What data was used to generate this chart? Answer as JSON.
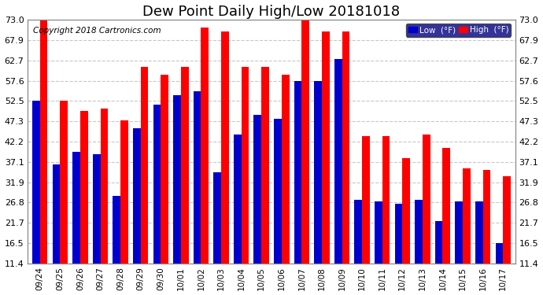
{
  "title": "Dew Point Daily High/Low 20181018",
  "copyright": "Copyright 2018 Cartronics.com",
  "dates": [
    "09/24",
    "09/25",
    "09/26",
    "09/27",
    "09/28",
    "09/29",
    "09/30",
    "10/01",
    "10/02",
    "10/03",
    "10/04",
    "10/05",
    "10/06",
    "10/07",
    "10/08",
    "10/09",
    "10/10",
    "10/11",
    "10/12",
    "10/13",
    "10/14",
    "10/15",
    "10/16",
    "10/17"
  ],
  "high_values": [
    73.0,
    52.5,
    50.0,
    50.5,
    47.5,
    61.0,
    59.0,
    61.0,
    71.0,
    70.0,
    61.0,
    61.0,
    59.0,
    74.0,
    70.0,
    70.0,
    43.5,
    43.5,
    38.0,
    44.0,
    40.5,
    35.5,
    35.0,
    33.5
  ],
  "low_values": [
    52.5,
    36.5,
    39.5,
    39.0,
    28.5,
    45.5,
    51.5,
    54.0,
    55.0,
    34.5,
    44.0,
    49.0,
    48.0,
    57.5,
    57.5,
    63.0,
    27.5,
    27.0,
    26.5,
    27.5,
    22.0,
    27.0,
    27.0,
    16.5
  ],
  "high_color": "#ff0000",
  "low_color": "#0000cc",
  "bg_color": "#ffffff",
  "plot_bg_color": "#ffffff",
  "grid_color": "#c8c8c8",
  "yticks": [
    11.4,
    16.5,
    21.7,
    26.8,
    31.9,
    37.1,
    42.2,
    47.3,
    52.5,
    57.6,
    62.7,
    67.9,
    73.0
  ],
  "ytick_labels": [
    "11.4",
    "16.5",
    "21.7",
    "26.8",
    "31.9",
    "37.1",
    "42.2",
    "47.3",
    "52.5",
    "57.6",
    "62.7",
    "67.9",
    "73.0"
  ],
  "ymin": 11.4,
  "ymax": 73.0,
  "title_fontsize": 13,
  "copyright_fontsize": 7.5,
  "legend_low_label": "Low  (°F)",
  "legend_high_label": "High  (°F)"
}
